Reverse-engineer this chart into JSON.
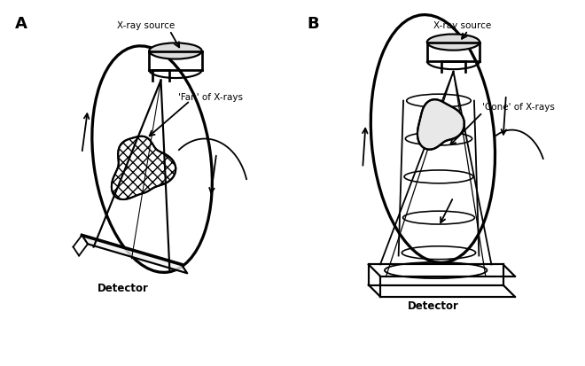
{
  "bg_color": "#ffffff",
  "line_color": "#000000",
  "fig_width": 6.6,
  "fig_height": 4.14,
  "dpi": 100,
  "label_A": "A",
  "label_B": "B",
  "text_xray_source": "X-ray source",
  "text_fan": "'Fan' of X-rays",
  "text_cone": "'Cone' of X-rays",
  "text_detector_A": "Detector",
  "text_detector_B": "Detector"
}
